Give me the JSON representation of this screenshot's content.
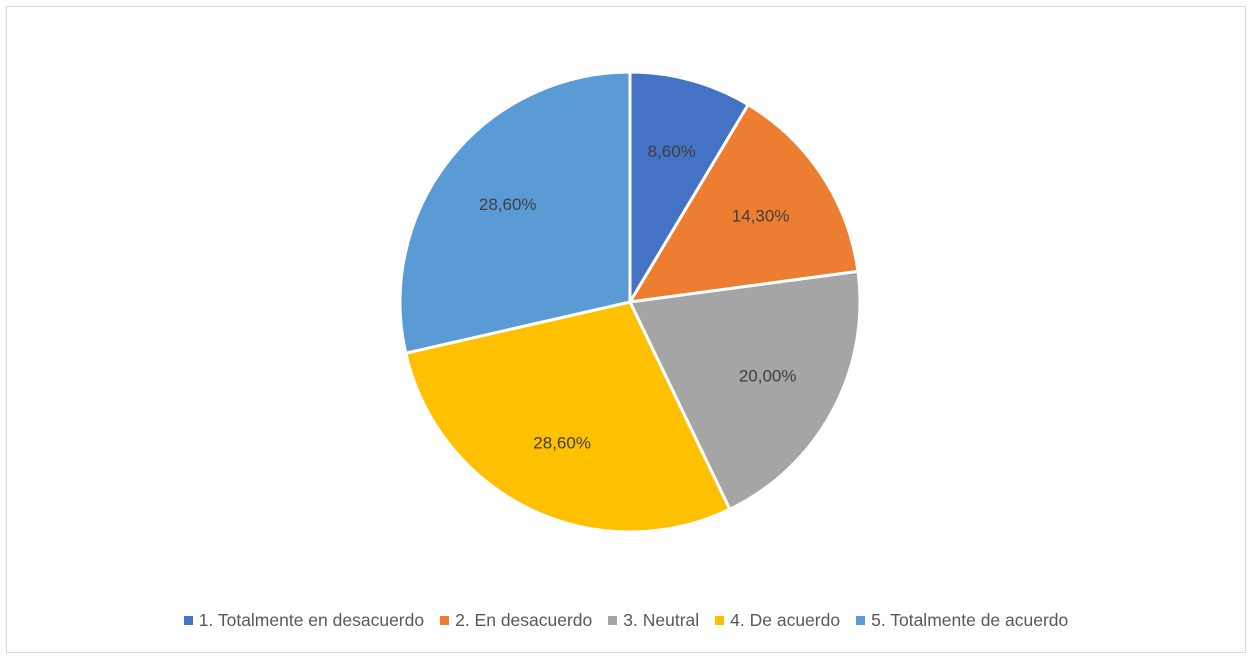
{
  "chart_data": {
    "type": "pie",
    "title": "",
    "categories": [
      "1. Totalmente en desacuerdo",
      "2. En desacuerdo",
      "3. Neutral",
      "4. De acuerdo",
      "5. Totalmente de acuerdo"
    ],
    "values": [
      8.6,
      14.3,
      20.0,
      28.6,
      28.6
    ],
    "data_labels": [
      "8,60%",
      "14,30%",
      "20,00%",
      "28,60%",
      "28,60%"
    ],
    "colors": [
      "#4472C4",
      "#ED7D31",
      "#A5A5A5",
      "#FFC000",
      "#5B9BD5"
    ],
    "start_angle": "12 o'clock",
    "direction": "clockwise",
    "legend_position": "bottom"
  }
}
